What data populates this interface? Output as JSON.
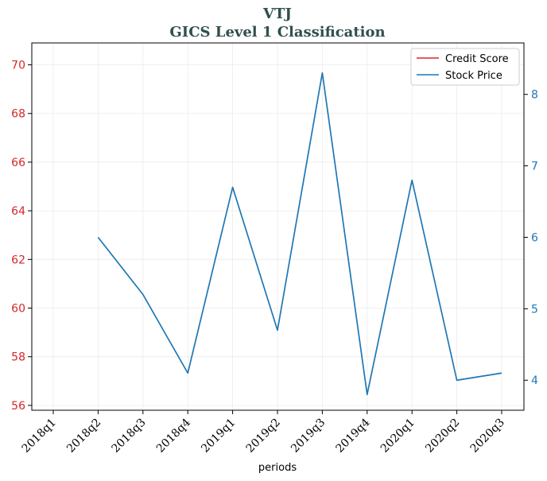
{
  "chart_data": {
    "type": "line",
    "title": "VTJ",
    "subtitle": "GICS Level 1 Classification",
    "xlabel": "periods",
    "categories": [
      "2018q1",
      "2018q2",
      "2018q3",
      "2018q4",
      "2019q1",
      "2019q2",
      "2019q3",
      "2019q4",
      "2020q1",
      "2020q2",
      "2020q3"
    ],
    "left_axis": {
      "ylim": [
        55.8,
        70.9
      ],
      "ticks": [
        56,
        58,
        60,
        62,
        64,
        66,
        68,
        70
      ],
      "color": "#d62728"
    },
    "right_axis": {
      "ylim": [
        3.58,
        8.72
      ],
      "ticks": [
        4,
        5,
        6,
        7,
        8
      ],
      "color": "#1f77b4"
    },
    "series": [
      {
        "name": "Credit Score",
        "axis": "left",
        "color": "#d62728",
        "values": [
          null,
          null,
          null,
          null,
          null,
          null,
          null,
          null,
          null,
          null,
          null
        ]
      },
      {
        "name": "Stock Price",
        "axis": "right",
        "color": "#1f77b4",
        "values": [
          null,
          6.0,
          5.2,
          4.1,
          6.7,
          4.7,
          8.3,
          3.8,
          6.8,
          4.0,
          4.1
        ]
      }
    ],
    "grid": true,
    "legend_position": "top-right"
  }
}
